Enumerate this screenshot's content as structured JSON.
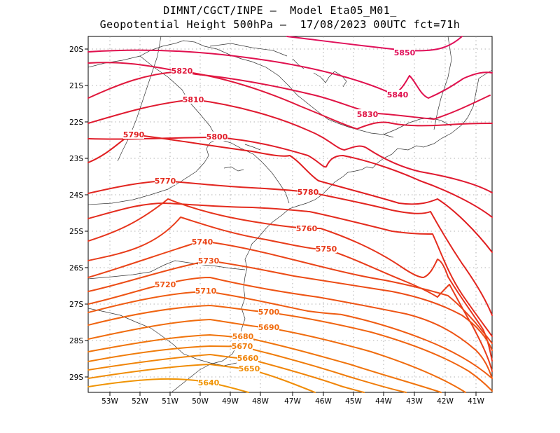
{
  "title": {
    "line1": "DIMNT/CGCT/INPE —  Model Eta05_M01_",
    "line2": "Geopotential Height 500hPa —  17/08/2023 00UTC fct=71h"
  },
  "axes": {
    "lon_labels": [
      "53W",
      "52W",
      "51W",
      "50W",
      "49W",
      "48W",
      "47W",
      "46W",
      "45W",
      "44W",
      "43W",
      "42W",
      "41W"
    ],
    "lat_labels": [
      "20S",
      "21S",
      "22S",
      "23S",
      "24S",
      "25S",
      "26S",
      "27S",
      "28S",
      "29S"
    ]
  },
  "contours": [
    {
      "value": 5850,
      "color": "#e0105a",
      "label": "5850"
    },
    {
      "value": 5840,
      "color": "#e0104e",
      "label": "5840"
    },
    {
      "value": 5830,
      "color": "#e01445",
      "label": "5830"
    },
    {
      "value": 5820,
      "color": "#e0183c",
      "label": "5820"
    },
    {
      "value": 5810,
      "color": "#e01a30",
      "label": "5810"
    },
    {
      "value": 5800,
      "color": "#e01c28",
      "label": "5800"
    },
    {
      "value": 5790,
      "color": "#e01e20",
      "label": "5790"
    },
    {
      "value": 5780,
      "color": "#e22620",
      "label": "5780"
    },
    {
      "value": 5770,
      "color": "#e42c1e",
      "label": "5770"
    },
    {
      "value": 5760,
      "color": "#e6341c",
      "label": "5760"
    },
    {
      "value": 5750,
      "color": "#e83c1a",
      "label": "5750"
    },
    {
      "value": 5740,
      "color": "#ea4418",
      "label": "5740"
    },
    {
      "value": 5730,
      "color": "#ec4c16",
      "label": "5730"
    },
    {
      "value": 5720,
      "color": "#ee5414",
      "label": "5720"
    },
    {
      "value": 5710,
      "color": "#ef5c12",
      "label": "5710"
    },
    {
      "value": 5700,
      "color": "#f06410",
      "label": "5700"
    },
    {
      "value": 5690,
      "color": "#f06c0e",
      "label": "5690"
    },
    {
      "value": 5680,
      "color": "#f0740c",
      "label": "5680"
    },
    {
      "value": 5670,
      "color": "#f07c0a",
      "label": "5670"
    },
    {
      "value": 5660,
      "color": "#f08408",
      "label": "5660"
    },
    {
      "value": 5650,
      "color": "#f08c06",
      "label": "5650"
    },
    {
      "value": 5640,
      "color": "#f09404",
      "label": "5640"
    }
  ]
}
